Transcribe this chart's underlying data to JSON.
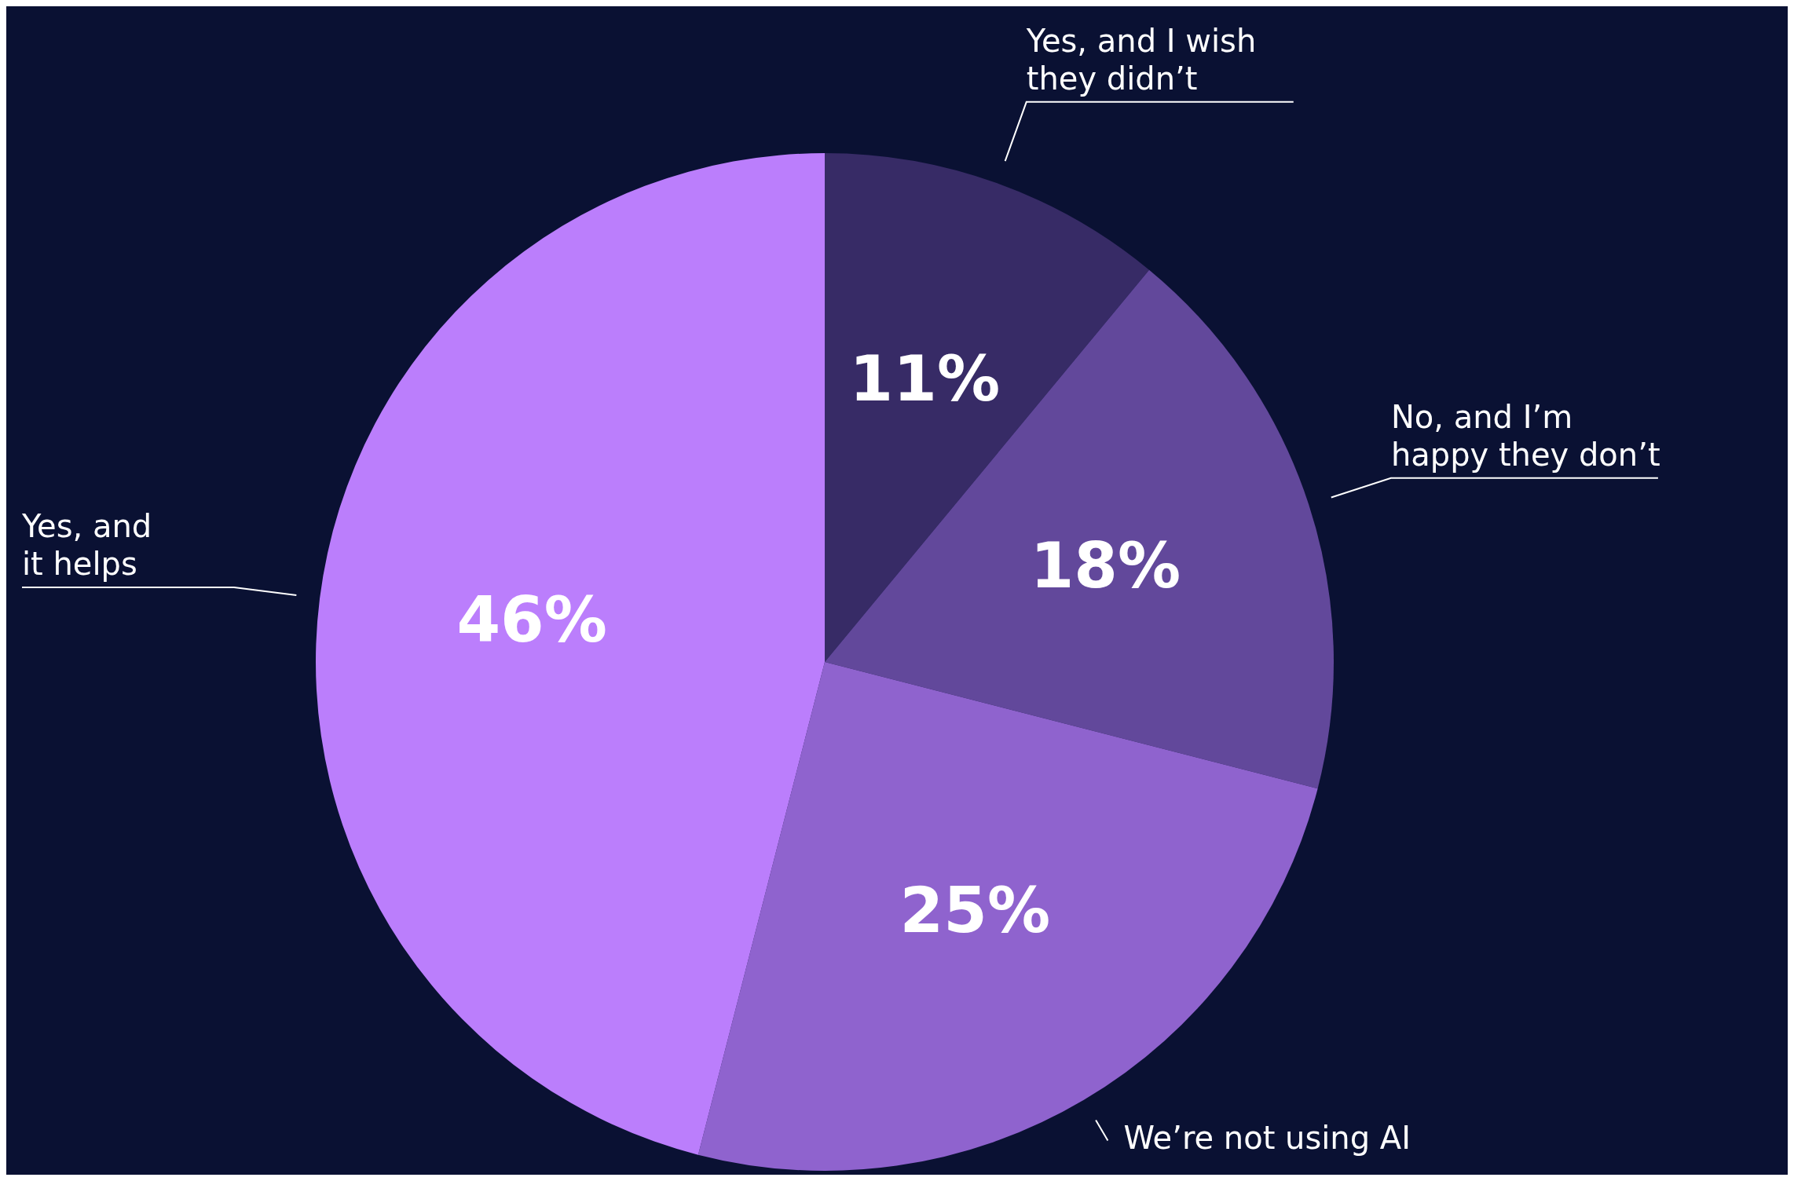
{
  "chart_data": {
    "type": "pie",
    "categories": [
      "Yes, and I wish they didn’t",
      "No, and I’m happy they don’t",
      "We’re not using AI",
      "Yes, and it helps"
    ],
    "values": [
      11,
      18,
      25,
      46
    ],
    "colors": [
      "#372b66",
      "#62489b",
      "#8f63ce",
      "#bb7efc"
    ],
    "value_labels": [
      "11%",
      "18%",
      "25%",
      "46%"
    ],
    "legend": false
  }
}
